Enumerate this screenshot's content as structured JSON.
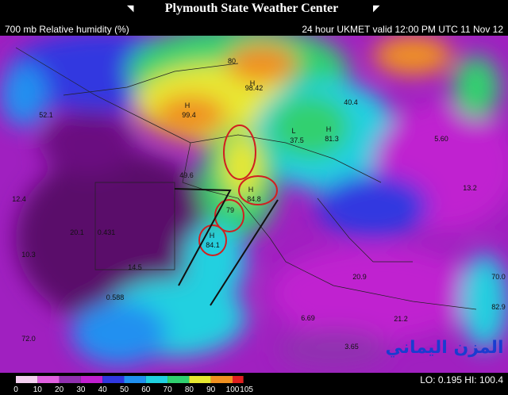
{
  "header": {
    "title": "Plymouth State Weather Center",
    "product": "700 mb Relative humidity (%)",
    "valid": "24 hour UKMET valid 12:00 PM UTC 11 Nov 12"
  },
  "map_labels": [
    "H",
    "99.4",
    "H",
    "98.42",
    "80",
    "52.1",
    "L",
    "37.5",
    "H",
    "81.3",
    "H",
    "84.8",
    "79",
    "H",
    "84.1",
    "49.6",
    "20.1",
    "0.431",
    "14.5",
    "0.588",
    "10.3",
    "72.0",
    "21.2",
    "40.4",
    "5.60",
    "13.2",
    "12.4",
    "20.9",
    "6.69",
    "3.65",
    "70.0",
    "82.9"
  ],
  "colorbar": {
    "labels": [
      0,
      10,
      20,
      30,
      40,
      50,
      60,
      70,
      80,
      90,
      100,
      105
    ],
    "colors": [
      "#f4d0f0",
      "#e060e0",
      "#9030b0",
      "#c020d0",
      "#3038e0",
      "#2090f0",
      "#20d0e0",
      "#30d070",
      "#e8e830",
      "#f09020",
      "#e02020"
    ]
  },
  "extremes": "LO: 0.195  HI: 100.4",
  "watermark": "المزن اليماني"
}
